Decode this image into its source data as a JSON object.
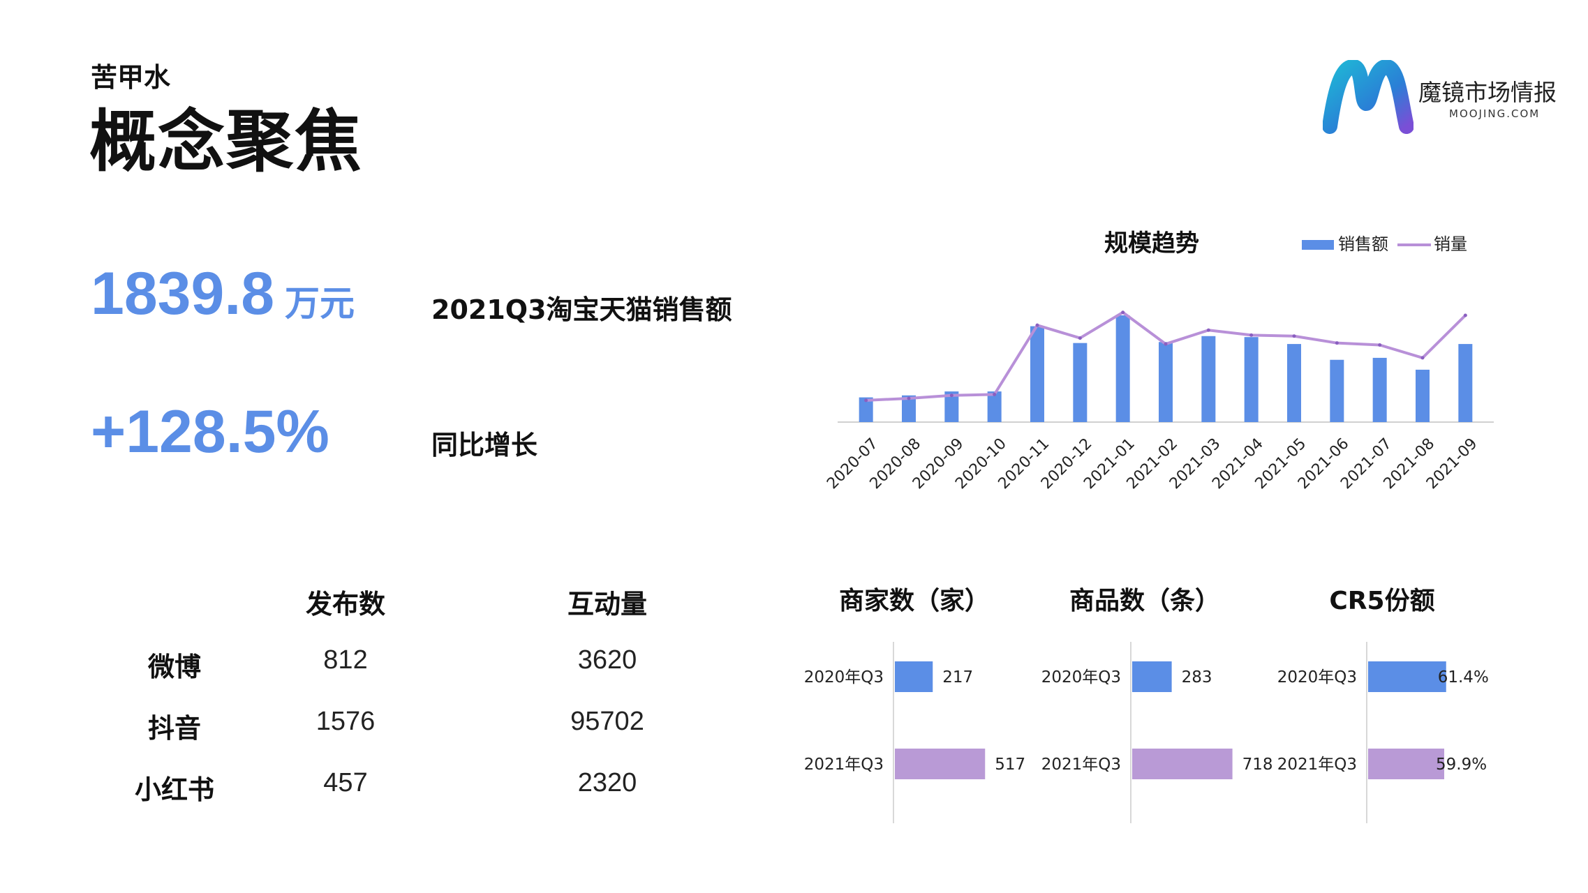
{
  "header": {
    "subtitle": "苦甲水",
    "title": "概念聚焦"
  },
  "logo": {
    "name": "魔镜市场情报",
    "url": "MOOJING.COM",
    "colors": [
      "#1fb6d6",
      "#2a6fd6",
      "#7a4fd6"
    ]
  },
  "kpis": [
    {
      "value": "1839.8",
      "unit": "万元",
      "label": "2021Q3淘宝天猫销售额"
    },
    {
      "value": "+128.5%",
      "label": "同比增长"
    }
  ],
  "social": {
    "columns": [
      "发布数",
      "互动量"
    ],
    "rows": [
      {
        "name": "微博",
        "values": [
          "812",
          "3620"
        ]
      },
      {
        "name": "抖音",
        "values": [
          "1576",
          "95702"
        ]
      },
      {
        "name": "小红书",
        "values": [
          "457",
          "2320"
        ]
      }
    ]
  },
  "chart_data": [
    {
      "type": "bar",
      "title": "规模趋势",
      "categories": [
        "2020-07",
        "2020-08",
        "2020-09",
        "2020-10",
        "2020-11",
        "2020-12",
        "2021-01",
        "2021-02",
        "2021-03",
        "2021-04",
        "2021-05",
        "2021-06",
        "2021-07",
        "2021-08",
        "2021-09"
      ],
      "series": [
        {
          "name": "销售额",
          "kind": "bar",
          "color": "#5b8ee6",
          "values": [
            25,
            27,
            31,
            31,
            97,
            80,
            108,
            81,
            87,
            86,
            79,
            63,
            65,
            53,
            79
          ]
        },
        {
          "name": "销量",
          "kind": "line",
          "color": "#b890d8",
          "values": [
            22,
            24,
            27,
            28,
            98,
            85,
            111,
            79,
            93,
            88,
            87,
            80,
            78,
            65,
            108
          ]
        }
      ],
      "legend": "top-right",
      "ylim": [
        0,
        120
      ],
      "grid": false
    },
    {
      "type": "bar",
      "orientation": "horizontal",
      "title": "商家数（家）",
      "categories": [
        "2020年Q3",
        "2021年Q3"
      ],
      "values": [
        217,
        517
      ],
      "labels": [
        "217",
        "517"
      ],
      "colors": [
        "#5b8ee6",
        "#b99ad6"
      ],
      "xlim": [
        0,
        1000
      ]
    },
    {
      "type": "bar",
      "orientation": "horizontal",
      "title": "商品数（条）",
      "categories": [
        "2020年Q3",
        "2021年Q3"
      ],
      "values": [
        283,
        718
      ],
      "labels": [
        "283",
        "718"
      ],
      "colors": [
        "#5b8ee6",
        "#b99ad6"
      ],
      "xlim": [
        0,
        800
      ]
    },
    {
      "type": "bar",
      "orientation": "horizontal",
      "title": "CR5份额",
      "categories": [
        "2020年Q3",
        "2021年Q3"
      ],
      "values": [
        61.4,
        59.9
      ],
      "labels": [
        "61.4%",
        "59.9%"
      ],
      "colors": [
        "#5b8ee6",
        "#b99ad6"
      ],
      "xlim": [
        0,
        100
      ]
    }
  ]
}
